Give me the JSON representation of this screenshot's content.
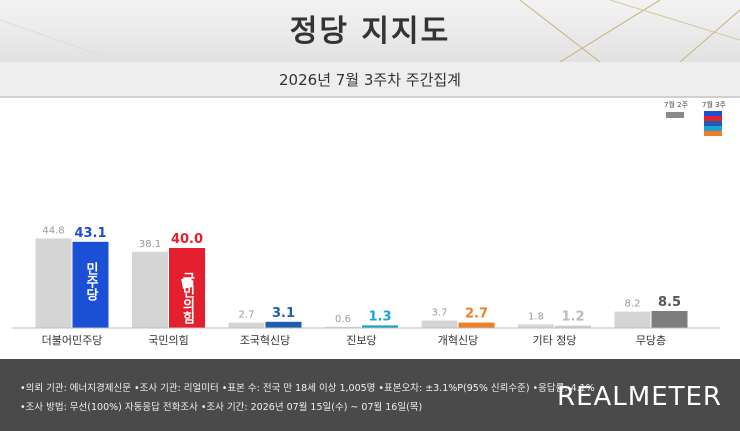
{
  "header": {
    "title": "정당 지지도",
    "subtitle": "2026년 7월 3주차 주간집계"
  },
  "legend": {
    "prev_label": "7월 2주",
    "curr_label": "7월 3주"
  },
  "chart_data": {
    "type": "bar",
    "categories": [
      "더불어민주당",
      "국민의힘",
      "조국혁신당",
      "진보당",
      "개혁신당",
      "기타 정당",
      "무당층"
    ],
    "series": [
      {
        "name": "7월 2주",
        "values": [
          44.8,
          38.1,
          2.7,
          0.6,
          3.7,
          1.8,
          8.2
        ]
      },
      {
        "name": "7월 3주",
        "values": [
          43.1,
          40.0,
          3.1,
          1.3,
          2.7,
          1.2,
          8.5
        ]
      }
    ],
    "series_colors": {
      "prev": "#d5d5d5",
      "curr": [
        "#1a4fd6",
        "#e5202e",
        "#1a5fb4",
        "#1ba3d4",
        "#f07e24",
        "#cfcfcf",
        "#7d7d7d"
      ]
    },
    "value_label_colors": [
      "#1a4fd6",
      "#e5202e",
      "#1a5fb4",
      "#1ba3d4",
      "#f07e24",
      "#bbbbbb",
      "#555555"
    ],
    "bar_marks": [
      "민주당",
      "국민의힘"
    ],
    "ylim": [
      0,
      50
    ]
  },
  "footer": {
    "note1": "•의뢰 기관: 에너지경제신문 •조사 기관: 리얼미터 •표본 수: 전국 만 18세 이상 1,005명 •표본오차: ±3.1%P(95% 신뢰수준) •응답률: 4.1%",
    "note2": "•조사 방법: 무선(100%) 자동응답 전화조사 •조사 기간: 2026년 07월 15일(수) ~ 07월 16일(목)",
    "brand": "REALMETER"
  }
}
